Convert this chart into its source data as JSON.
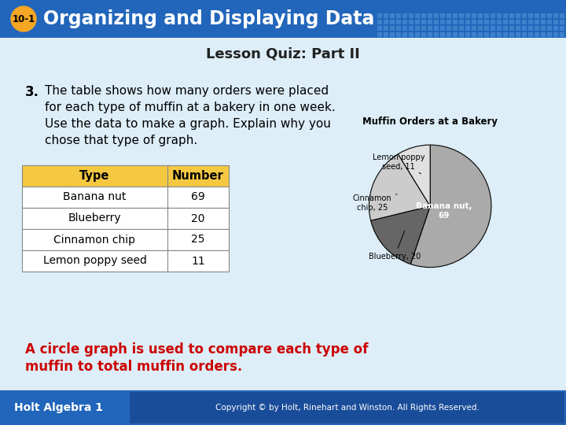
{
  "title_lesson": "Organizing and Displaying Data",
  "title_badge": "10-1",
  "subtitle": "Lesson Quiz: Part II",
  "question_num": "3.",
  "question_lines": [
    "The table shows how many orders were placed",
    "for each type of muffin at a bakery in one week.",
    "Use the data to make a graph. Explain why you",
    "chose that type of graph."
  ],
  "table_headers": [
    "Type",
    "Number"
  ],
  "table_rows": [
    [
      "Banana nut",
      "69"
    ],
    [
      "Blueberry",
      "20"
    ],
    [
      "Cinnamon chip",
      "25"
    ],
    [
      "Lemon poppy seed",
      "11"
    ]
  ],
  "pie_title": "Muffin Orders at a Bakery",
  "pie_values": [
    69,
    20,
    25,
    11
  ],
  "pie_colors": [
    "#aaaaaa",
    "#666666",
    "#cccccc",
    "#e0e0e0"
  ],
  "pie_startangle": 90,
  "answer_line1": "A circle graph is used to compare each type of",
  "answer_line2": "muffin to total muffin orders.",
  "answer_color": "#cc0000",
  "top_bar_color": "#2266bb",
  "top_bar_grid_color": "#5599dd",
  "badge_color": "#f5a623",
  "badge_text_color": "#000000",
  "title_text_color": "#ffffff",
  "slide_bg": "#cce0f0",
  "content_bg": "#ddeef8",
  "table_header_bg": "#f5c842",
  "table_border_color": "#888888",
  "bottom_bar_color": "#2266bb",
  "copyright_bar_color": "#1a4d99",
  "footer_left": "Holt Algebra 1",
  "footer_right": "Copyright © by Holt, Rinehart and Winston. All Rights Reserved.",
  "footer_text_color": "#ffffff",
  "subtitle_color": "#222222",
  "question_color": "#000000",
  "pie_inside_label": "Banana nut,\n69",
  "pie_inside_color": "#ffffff",
  "pie_edge_color": "#000000"
}
